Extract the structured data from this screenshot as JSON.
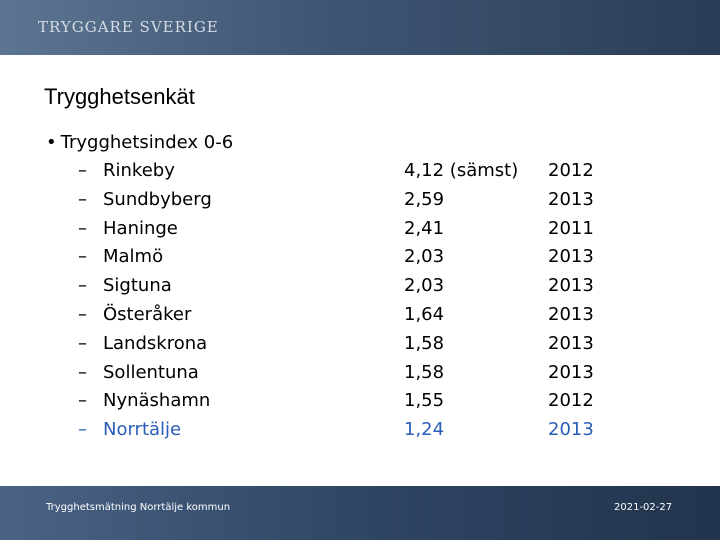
{
  "header": {
    "brand": "TRYGGARE SVERIGE"
  },
  "slide": {
    "title": "Trygghetsenkät",
    "bullet": "Trygghetsindex 0-6",
    "rows": [
      {
        "dash": "–",
        "name": "Rinkeby",
        "value": "4,12 (sämst)",
        "year": "2012"
      },
      {
        "dash": "–",
        "name": "Sundbyberg",
        "value": "2,59",
        "year": "2013"
      },
      {
        "dash": "–",
        "name": "Haninge",
        "value": "2,41",
        "year": "2011"
      },
      {
        "dash": "–",
        "name": "Malmö",
        "value": "2,03",
        "year": "2013"
      },
      {
        "dash": "–",
        "name": "Sigtuna",
        "value": "2,03",
        "year": "2013"
      },
      {
        "dash": "–",
        "name": "Österåker",
        "value": "1,64",
        "year": "2013"
      },
      {
        "dash": "–",
        "name": "Landskrona",
        "value": "1,58",
        "year": "2013"
      },
      {
        "dash": "–",
        "name": "Sollentuna",
        "value": "1,58",
        "year": "2013"
      },
      {
        "dash": "–",
        "name": "Nynäshamn",
        "value": "1,55",
        "year": "2012"
      },
      {
        "dash": "–",
        "name": "Norrtälje",
        "value": "1,24",
        "year": "2013"
      }
    ],
    "highlight_color": "#2a5db8"
  },
  "footer": {
    "left": "Trygghetsmätning Norrtälje kommun",
    "right": "2021-02-27"
  }
}
